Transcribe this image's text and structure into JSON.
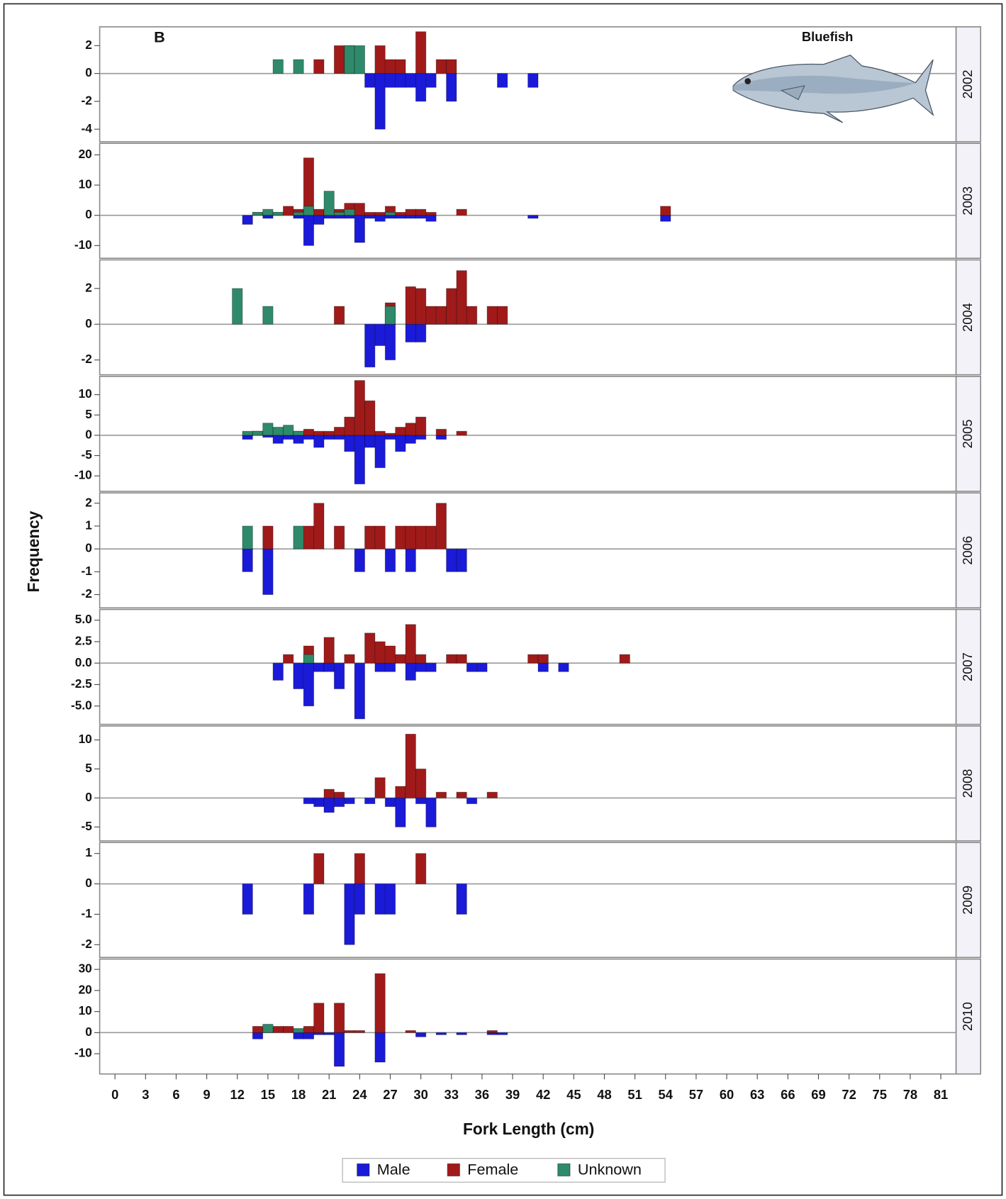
{
  "chart_data": {
    "type": "bar",
    "panel_tag": "B",
    "species": "Bluefish",
    "xlabel": "Fork Length (cm)",
    "ylabel": "Frequency",
    "xlim": [
      -1.5,
      82.5
    ],
    "xticks": [
      0,
      3,
      6,
      9,
      12,
      15,
      18,
      21,
      24,
      27,
      30,
      33,
      36,
      39,
      42,
      45,
      48,
      51,
      54,
      57,
      60,
      63,
      66,
      69,
      72,
      75,
      78,
      81
    ],
    "legend": [
      {
        "name": "Male",
        "color": "#1a1ad8"
      },
      {
        "name": "Female",
        "color": "#a01a1a"
      },
      {
        "name": "Unknown",
        "color": "#2e8a6a"
      }
    ],
    "panels": [
      {
        "label": "2002",
        "ylim": [
          -4.9,
          3.35
        ],
        "yticks": [
          2,
          0,
          -2,
          -4
        ],
        "series": [
          {
            "x": [
              25,
              26,
              27,
              28,
              29,
              30,
              31,
              33,
              38,
              41
            ],
            "values": [
              -1,
              -4,
              -1,
              -1,
              -1,
              -2,
              -1,
              -2,
              -1,
              -1
            ]
          },
          {
            "x": [
              20,
              22,
              23,
              26,
              27,
              28,
              30,
              32,
              33
            ],
            "values": [
              1,
              2,
              2,
              2,
              1,
              1,
              3,
              1,
              1
            ]
          },
          {
            "x": [
              16,
              18,
              23,
              24
            ],
            "values": [
              1,
              1,
              2,
              2
            ]
          }
        ]
      },
      {
        "label": "2003",
        "ylim": [
          -14.2,
          23.8
        ],
        "yticks": [
          20,
          10,
          0,
          -10
        ],
        "series": [
          {
            "x": [
              13,
              15,
              18,
              19,
              20,
              21,
              22,
              23,
              24,
              25,
              26,
              27,
              28,
              29,
              30,
              31,
              41,
              54
            ],
            "values": [
              -3,
              -1,
              -1,
              -10,
              -3,
              -1,
              -1,
              -1,
              -9,
              -1,
              -2,
              -1,
              -1,
              -1,
              -1,
              -2,
              -1,
              -2
            ]
          },
          {
            "x": [
              14,
              15,
              16,
              17,
              18,
              19,
              20,
              21,
              22,
              23,
              24,
              25,
              26,
              27,
              28,
              29,
              30,
              31,
              34,
              54
            ],
            "values": [
              1,
              1,
              1,
              3,
              2,
              19,
              2,
              2,
              2,
              4,
              4,
              1,
              1,
              3,
              1,
              2,
              2,
              1,
              2,
              3
            ]
          },
          {
            "x": [
              14,
              15,
              16,
              18,
              19,
              21,
              22,
              23,
              27
            ],
            "values": [
              1,
              2,
              1,
              1,
              3,
              8,
              1,
              2,
              1
            ]
          }
        ]
      },
      {
        "label": "2004",
        "ylim": [
          -2.83,
          3.6
        ],
        "yticks": [
          2,
          0,
          -2
        ],
        "series": [
          {
            "x": [
              25,
              26,
              27,
              29,
              30
            ],
            "values": [
              -2.4,
              -1.2,
              -2,
              -1,
              -1
            ]
          },
          {
            "x": [
              22,
              27,
              29,
              30,
              31,
              32,
              33,
              34,
              35,
              37,
              38
            ],
            "values": [
              1,
              1.2,
              2.1,
              2,
              1,
              1,
              2,
              3,
              1,
              1,
              1
            ]
          },
          {
            "x": [
              12,
              15,
              27
            ],
            "values": [
              2,
              1,
              1
            ]
          }
        ]
      },
      {
        "label": "2005",
        "ylim": [
          -13.8,
          14.5
        ],
        "yticks": [
          10,
          5,
          0,
          -5,
          -10
        ],
        "series": [
          {
            "x": [
              13,
              15,
              16,
              17,
              18,
              19,
              20,
              21,
              22,
              23,
              24,
              25,
              26,
              27,
              28,
              29,
              30,
              32
            ],
            "values": [
              -1,
              -0.5,
              -2,
              -1,
              -2,
              -1,
              -3,
              -1,
              -1,
              -4,
              -12,
              -3,
              -8,
              -1,
              -4,
              -2,
              -1,
              -1
            ]
          },
          {
            "x": [
              14,
              15,
              16,
              17,
              18,
              19,
              20,
              21,
              22,
              23,
              24,
              25,
              26,
              27,
              28,
              29,
              30,
              32,
              34
            ],
            "values": [
              1,
              1,
              1,
              1,
              1,
              1.5,
              1,
              1,
              2,
              4.5,
              13.5,
              8.5,
              1,
              0.5,
              2,
              3,
              4.5,
              1.5,
              1
            ]
          },
          {
            "x": [
              13,
              14,
              15,
              16,
              17,
              18
            ],
            "values": [
              1,
              1,
              3,
              2,
              2.5,
              1
            ]
          }
        ]
      },
      {
        "label": "2006",
        "ylim": [
          -2.58,
          2.45
        ],
        "yticks": [
          2,
          1,
          0,
          -1,
          -2
        ],
        "series": [
          {
            "x": [
              13,
              15,
              24,
              27,
              29,
              33,
              34
            ],
            "values": [
              -1,
              -2,
              -1,
              -1,
              -1,
              -1,
              -1
            ]
          },
          {
            "x": [
              15,
              19,
              20,
              22,
              25,
              26,
              28,
              29,
              30,
              31,
              32
            ],
            "values": [
              1,
              1,
              2,
              1,
              1,
              1,
              1,
              1,
              1,
              1,
              2
            ]
          },
          {
            "x": [
              13,
              18
            ],
            "values": [
              1,
              1
            ]
          }
        ]
      },
      {
        "label": "2007",
        "ylim": [
          -7.14,
          6.25
        ],
        "yticks": [
          {
            "value": 5,
            "label": "5.0"
          },
          {
            "value": 2.5,
            "label": "2.5"
          },
          {
            "value": 0,
            "label": "0.0"
          },
          {
            "value": -2.5,
            "label": "-2.5"
          },
          {
            "value": -5,
            "label": "-5.0"
          }
        ],
        "series": [
          {
            "x": [
              16,
              18,
              19,
              20,
              21,
              22,
              24,
              26,
              27,
              29,
              30,
              31,
              35,
              36,
              42,
              44
            ],
            "values": [
              -2,
              -3,
              -5,
              -1,
              -1,
              -3,
              -6.5,
              -1,
              -1,
              -2,
              -1,
              -1,
              -1,
              -1,
              -1,
              -1
            ]
          },
          {
            "x": [
              17,
              19,
              21,
              23,
              25,
              26,
              27,
              28,
              29,
              30,
              33,
              34,
              41,
              42,
              50
            ],
            "values": [
              1,
              2,
              3,
              1,
              3.5,
              2.5,
              2,
              1,
              4.5,
              1,
              1,
              1,
              1,
              1,
              1
            ]
          },
          {
            "x": [
              19
            ],
            "values": [
              1
            ]
          }
        ]
      },
      {
        "label": "2008",
        "ylim": [
          -7.4,
          12.4
        ],
        "yticks": [
          10,
          5,
          0,
          -5
        ],
        "series": [
          {
            "x": [
              19,
              20,
              21,
              22,
              23,
              25,
              27,
              28,
              30,
              31,
              35
            ],
            "values": [
              -1,
              -1.5,
              -2.5,
              -1.5,
              -1,
              -1,
              -1.5,
              -5,
              -1,
              -5,
              -1
            ]
          },
          {
            "x": [
              21,
              22,
              26,
              28,
              29,
              30,
              32,
              34,
              37
            ],
            "values": [
              1.5,
              1,
              3.5,
              2,
              11,
              5,
              1,
              1,
              1
            ]
          },
          {
            "x": [],
            "values": []
          }
        ]
      },
      {
        "label": "2009",
        "ylim": [
          -2.42,
          1.36
        ],
        "yticks": [
          1,
          0,
          -1,
          -2
        ],
        "series": [
          {
            "x": [
              13,
              19,
              23,
              24,
              26,
              27,
              34
            ],
            "values": [
              -1,
              -1,
              -2,
              -1,
              -1,
              -1,
              -1
            ]
          },
          {
            "x": [
              20,
              24,
              30
            ],
            "values": [
              1,
              1,
              1
            ]
          },
          {
            "x": [],
            "values": []
          }
        ]
      },
      {
        "label": "2010",
        "ylim": [
          -19.6,
          34.9
        ],
        "yticks": [
          30,
          20,
          10,
          0,
          -10
        ],
        "series": [
          {
            "x": [
              14,
              18,
              19,
              20,
              21,
              22,
              26,
              30,
              32,
              34,
              37,
              38
            ],
            "values": [
              -3,
              -3,
              -3,
              -1,
              -1,
              -16,
              -14,
              -2,
              -1,
              -1,
              -1,
              -1
            ]
          },
          {
            "x": [
              14,
              15,
              16,
              17,
              19,
              20,
              22,
              23,
              24,
              26,
              29,
              37
            ],
            "values": [
              3,
              2,
              3,
              3,
              3,
              14,
              14,
              1,
              1,
              28,
              1,
              1
            ]
          },
          {
            "x": [
              15,
              18
            ],
            "values": [
              4,
              2
            ]
          }
        ]
      }
    ]
  }
}
